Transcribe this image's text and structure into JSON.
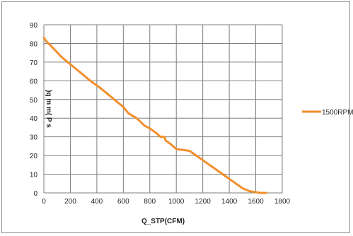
{
  "chart_data": {
    "type": "line",
    "title": "",
    "xlabel": "Q_STP(CFM)",
    "ylabel": ")q m m( P s",
    "xlim": [
      0,
      1800
    ],
    "ylim": [
      0,
      90
    ],
    "xticks": [
      "0",
      "200",
      "400",
      "600",
      "800",
      "1000",
      "1200",
      "1400",
      "1600",
      "1800"
    ],
    "yticks": [
      "0",
      "10",
      "20",
      "30",
      "40",
      "50",
      "60",
      "70",
      "80",
      "90"
    ],
    "grid": true,
    "legend_position": "right",
    "series": [
      {
        "name": "1500RPM",
        "color": "#f28e2b",
        "x": [
          0,
          20,
          50,
          90,
          130,
          180,
          240,
          300,
          360,
          420,
          480,
          540,
          600,
          640,
          700,
          760,
          800,
          850,
          880,
          910,
          920,
          950,
          1000,
          1050,
          1100,
          1150,
          1200,
          1250,
          1300,
          1350,
          1400,
          1450,
          1500,
          1550,
          1590,
          1610,
          1630,
          1650,
          1680
        ],
        "y": [
          83,
          81,
          79,
          76,
          73,
          70,
          66.5,
          63,
          59.5,
          56.5,
          53,
          49.5,
          46,
          42.5,
          40,
          36,
          34.5,
          32,
          30,
          30,
          28,
          26.5,
          23.5,
          23,
          22.5,
          20,
          17.5,
          15,
          12.5,
          10,
          7.5,
          5,
          2.5,
          1,
          0.5,
          0.3,
          0,
          0,
          0
        ]
      }
    ]
  }
}
